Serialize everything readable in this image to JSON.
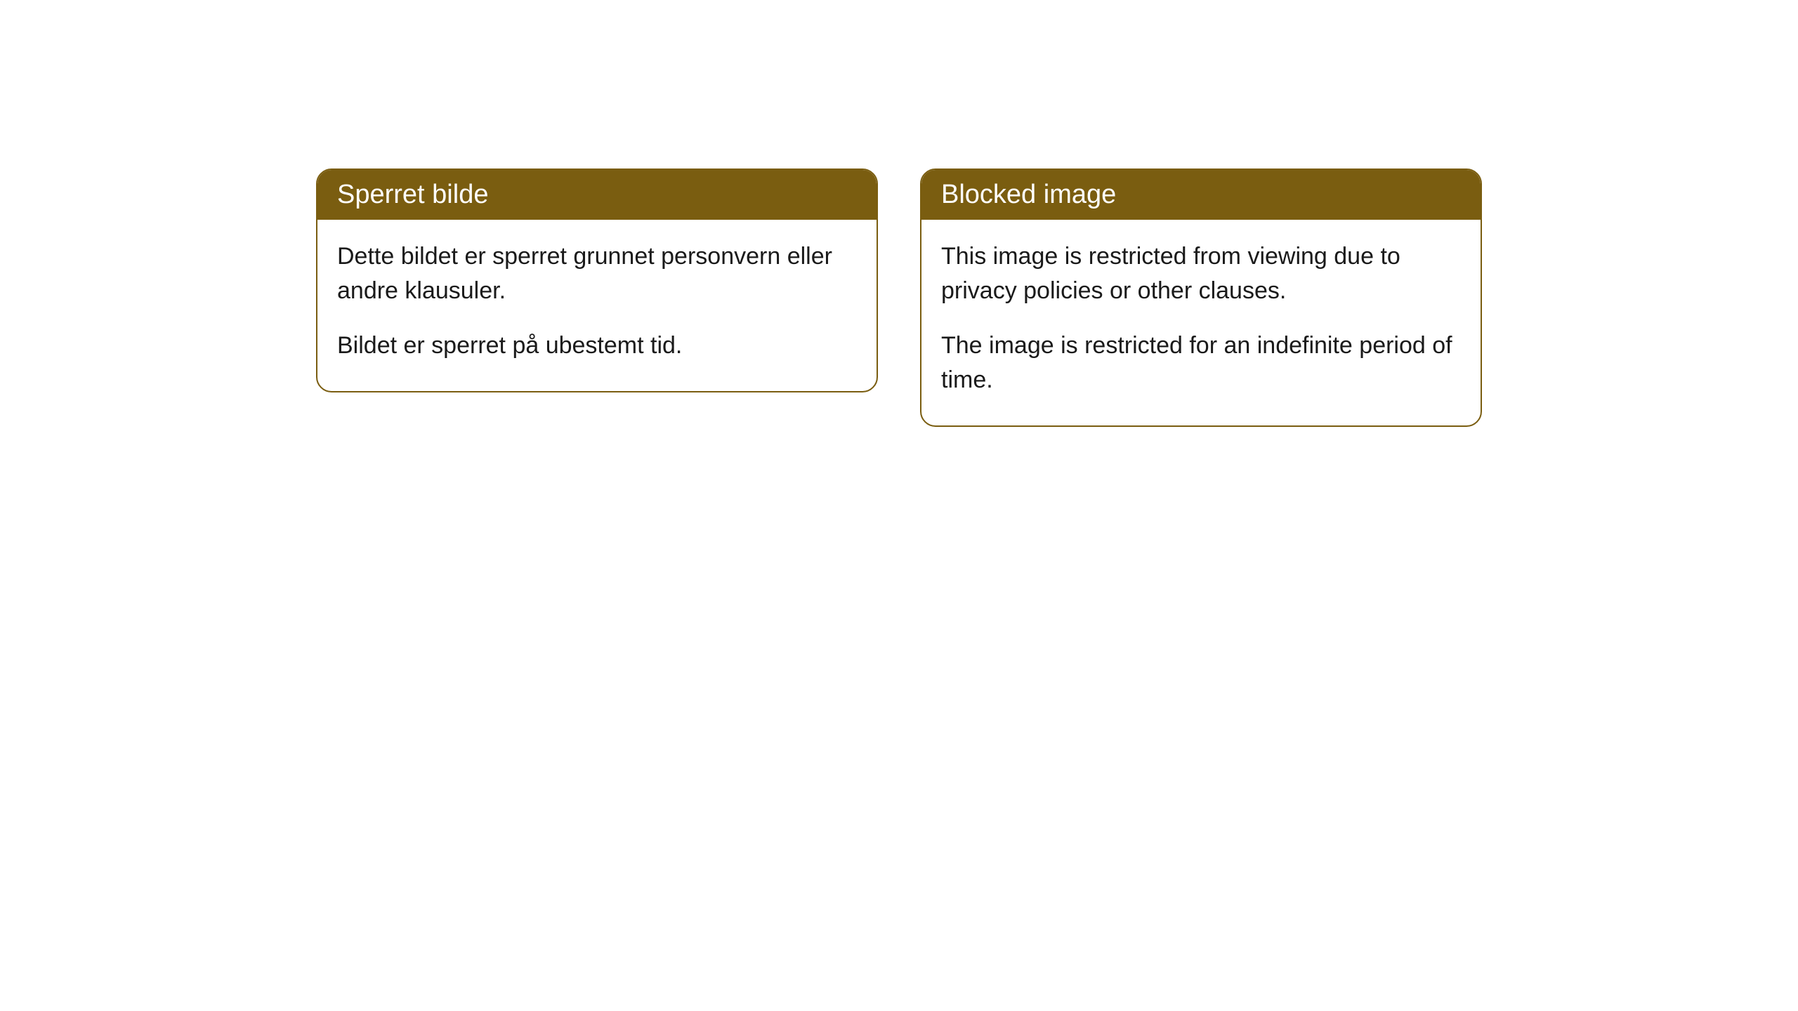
{
  "cards": [
    {
      "title": "Sperret bilde",
      "paragraph1": "Dette bildet er sperret grunnet personvern eller andre klausuler.",
      "paragraph2": "Bildet er sperret på ubestemt tid."
    },
    {
      "title": "Blocked image",
      "paragraph1": "This image is restricted from viewing due to privacy policies or other clauses.",
      "paragraph2": "The image is restricted for an indefinite period of time."
    }
  ],
  "style": {
    "header_bg_color": "#7a5d10",
    "header_text_color": "#ffffff",
    "border_color": "#7a5d10",
    "body_bg_color": "#ffffff",
    "body_text_color": "#1a1a1a",
    "border_radius": 22,
    "title_fontsize": 38,
    "body_fontsize": 34
  }
}
